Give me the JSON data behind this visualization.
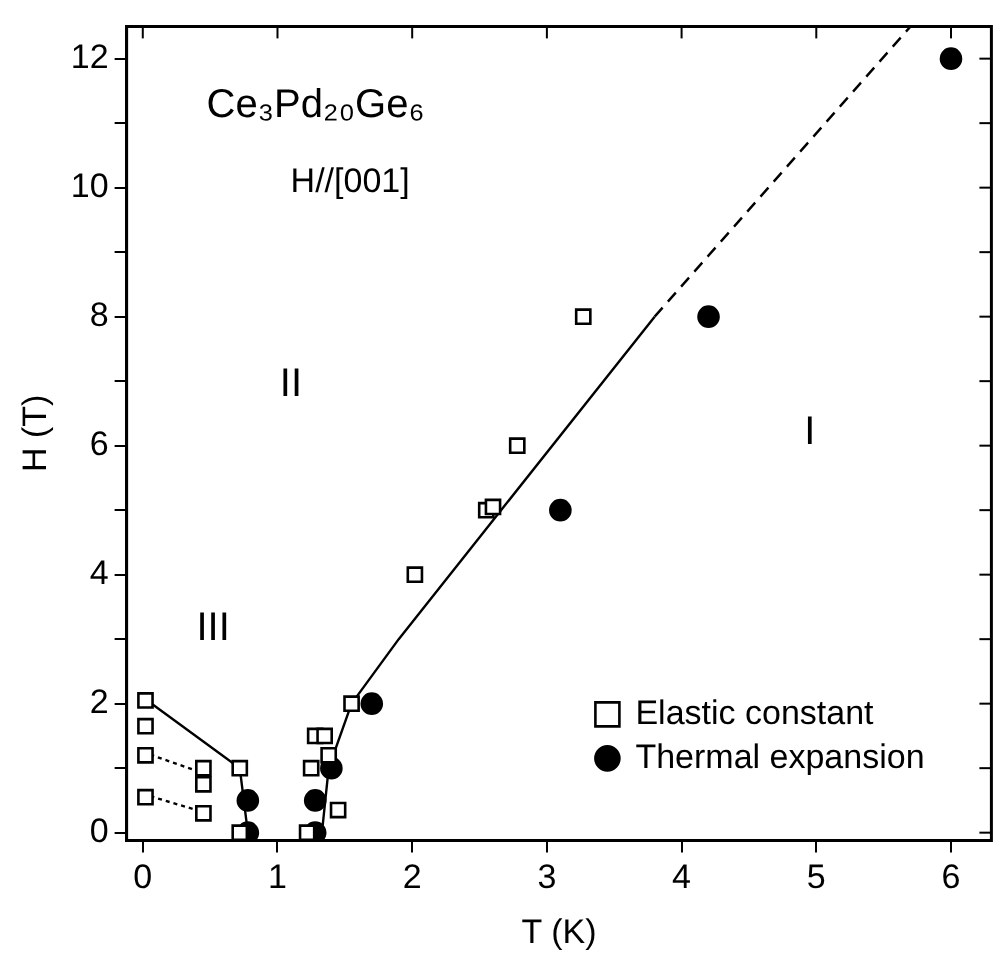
{
  "chart_data": {
    "type": "scatter",
    "title": "Ce₃Pd₂₀Ge₆",
    "subtitle": "H//[001]",
    "xlabel": "T (K)",
    "ylabel": "H (T)",
    "xlim": [
      -0.12,
      6.3
    ],
    "xticks": [
      0,
      1,
      2,
      3,
      4,
      5,
      6
    ],
    "ylim": [
      -0.12,
      12.5
    ],
    "yticks": [
      0,
      {
        "value": 1,
        "label": null
      },
      2,
      {
        "value": 3,
        "label": null
      },
      4,
      {
        "value": 5,
        "label": null
      },
      6,
      {
        "value": 7,
        "label": null
      },
      8,
      {
        "value": 9,
        "label": null
      },
      10,
      {
        "value": 11,
        "label": null
      },
      12
    ],
    "grid": false,
    "legend": "bottom right",
    "annotations": [
      "II",
      "I",
      "III"
    ],
    "series": [
      {
        "name": "Elastic constant",
        "marker": "square",
        "color": "#000000",
        "x": [
          0.02,
          0.02,
          0.02,
          0.02,
          0.45,
          0.45,
          0.45,
          0.72,
          0.72,
          1.22,
          1.25,
          1.28,
          1.35,
          1.38,
          1.45,
          1.55,
          2.02,
          2.55,
          2.6,
          2.78,
          3.27
        ],
        "values": [
          2.05,
          1.65,
          1.2,
          0.55,
          1.0,
          0.75,
          0.3,
          1.0,
          0,
          0,
          1.0,
          1.5,
          1.5,
          1.2,
          0.35,
          2.0,
          4.0,
          5.0,
          5.05,
          6.0,
          8.0
        ]
      },
      {
        "name": "Thermal expansion",
        "marker": "circle",
        "color": "#000000",
        "x": [
          0.78,
          0.78,
          1.28,
          1.28,
          1.4,
          1.7,
          3.1,
          4.2,
          6.0
        ],
        "values": [
          0.5,
          0,
          0.5,
          0,
          1.0,
          2.0,
          5.0,
          8.0,
          12.0
        ]
      },
      {
        "type": "line",
        "marker": "none",
        "line_style": "solid",
        "color": "#000000",
        "x": [
          0,
          0.72,
          0.78
        ],
        "values": [
          2.1,
          1.0,
          0
        ]
      },
      {
        "type": "line",
        "marker": "none",
        "line_style": "solid",
        "color": "#000000",
        "x": [
          1.33,
          1.38,
          1.55,
          1.9,
          3.8
        ],
        "values": [
          0,
          1.0,
          2.0,
          3.0,
          8.0
        ]
      },
      {
        "type": "line",
        "marker": "none",
        "line_style": "dashed",
        "color": "#000000",
        "x": [
          3.8,
          5.7
        ],
        "values": [
          8.0,
          12.5
        ]
      },
      {
        "type": "line",
        "marker": "none",
        "line_style": "dotted",
        "color": "#000000",
        "x": [
          0,
          0.48
        ],
        "values": [
          1.25,
          0.9
        ]
      },
      {
        "type": "line",
        "marker": "none",
        "line_style": "dotted",
        "color": "#000000",
        "x": [
          0,
          0.48
        ],
        "values": [
          0.6,
          0.3
        ]
      }
    ]
  }
}
